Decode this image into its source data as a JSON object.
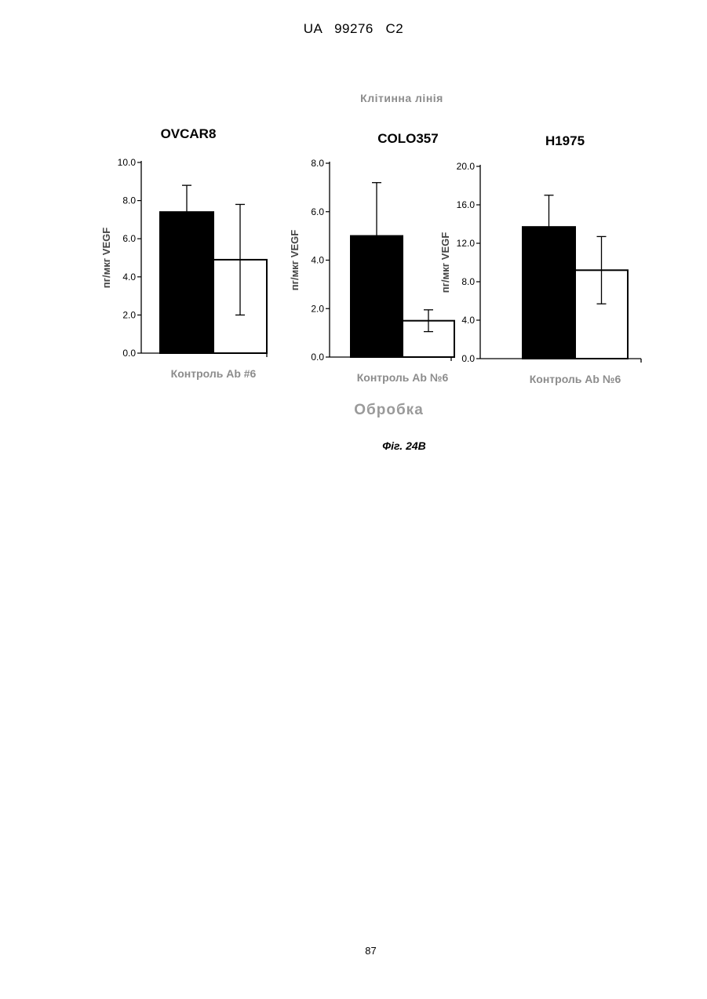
{
  "header": {
    "text": "UA   99276   C2"
  },
  "figure": {
    "supertitle": "Клітинна лінія",
    "x_group_label": "Обробка",
    "caption": "Фіг. 24B"
  },
  "page_number": "87",
  "colors": {
    "control_bar": "#000000",
    "antibody_bar": "#ffffff",
    "group_label": "#8c8c8c"
  },
  "chart_data": [
    {
      "type": "bar",
      "title": "OVCAR8",
      "ylabel": "пг/мкг VEGF",
      "categories_label": "Контроль Ab #6",
      "categories": [
        "Контроль",
        "Ab #6"
      ],
      "values": [
        7.4,
        4.9
      ],
      "errors": [
        1.4,
        2.9
      ],
      "ylim": [
        0,
        10
      ],
      "yticks": [
        "0.0",
        "2.0",
        "4.0",
        "6.0",
        "8.0",
        "10.0"
      ]
    },
    {
      "type": "bar",
      "title": "COLO357",
      "ylabel": "пг/мкг VEGF",
      "categories_label": "Контроль Ab №6",
      "categories": [
        "Контроль",
        "Ab №6"
      ],
      "values": [
        5.0,
        1.5
      ],
      "errors": [
        2.2,
        0.45
      ],
      "ylim": [
        0,
        8
      ],
      "yticks": [
        "0.0",
        "2.0",
        "4.0",
        "6.0",
        "8.0"
      ]
    },
    {
      "type": "bar",
      "title": "H1975",
      "ylabel": "пг/мкг VEGF",
      "categories_label": "Контроль Ab №6",
      "categories": [
        "Контроль",
        "Ab №6"
      ],
      "values": [
        13.7,
        9.2
      ],
      "errors": [
        3.3,
        3.5
      ],
      "ylim": [
        0,
        20
      ],
      "yticks": [
        "0.0",
        "4.0",
        "8.0",
        "12.0",
        "16.0",
        "20.0"
      ]
    }
  ]
}
